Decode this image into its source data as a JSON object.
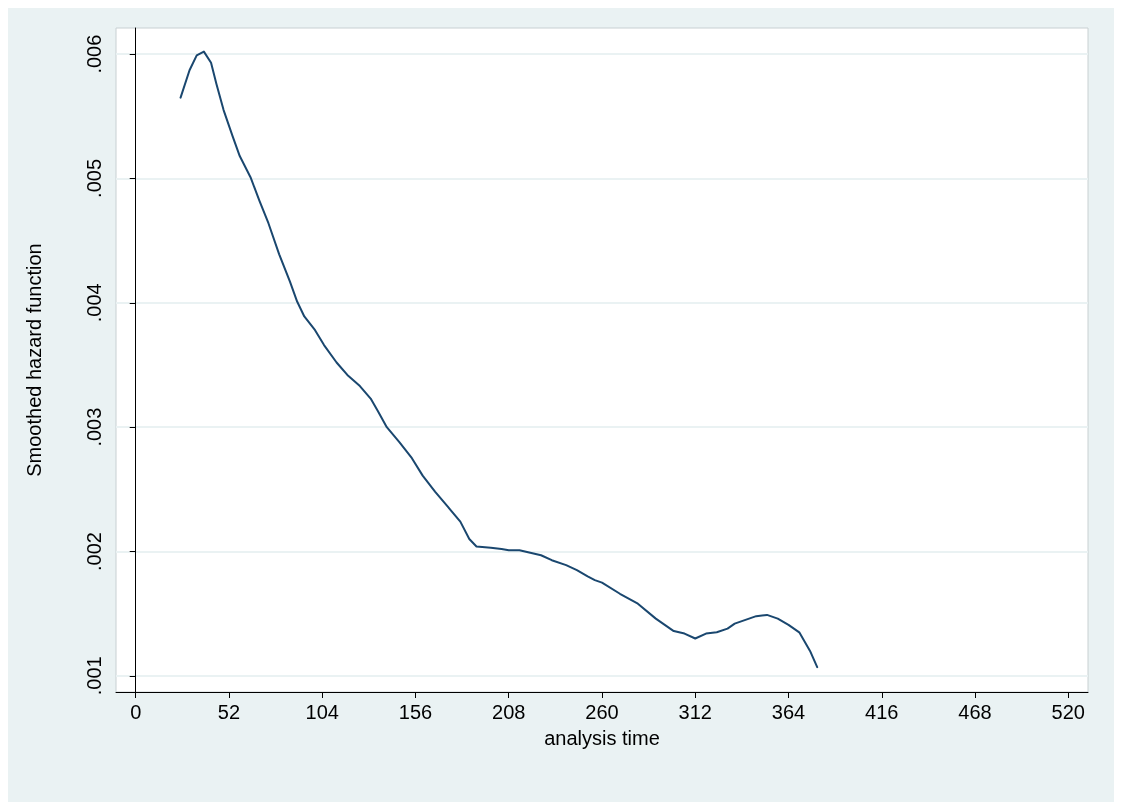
{
  "chart_data": {
    "type": "line",
    "xlabel": "analysis time",
    "ylabel": "Smoothed hazard function",
    "xlim": [
      -11,
      531
    ],
    "ylim": [
      0.00087,
      0.00621
    ],
    "xticks": [
      0,
      52,
      104,
      156,
      208,
      260,
      312,
      364,
      416,
      468,
      520
    ],
    "yticks": [
      {
        "value": 0.001,
        "label": ".001"
      },
      {
        "value": 0.002,
        "label": ".002"
      },
      {
        "value": 0.003,
        "label": ".003"
      },
      {
        "value": 0.004,
        "label": ".004"
      },
      {
        "value": 0.005,
        "label": ".005"
      },
      {
        "value": 0.006,
        "label": ".006"
      }
    ],
    "grid": "y",
    "marker": "none",
    "line_style": "solid",
    "series": [
      {
        "color": "#1a476f",
        "x": [
          25,
          30,
          34,
          38,
          42,
          45,
          49,
          54,
          58,
          64,
          69,
          74,
          80,
          86,
          90,
          94,
          100,
          105,
          112,
          118,
          125,
          131,
          135,
          140,
          147,
          154,
          160,
          167,
          174,
          181,
          186,
          190,
          198,
          204,
          208,
          214,
          220,
          226,
          232,
          240,
          246,
          252,
          256,
          260,
          270,
          280,
          290,
          296,
          300,
          306,
          312,
          318,
          324,
          330,
          334,
          340,
          346,
          352,
          358,
          364,
          370,
          376,
          380
        ],
        "values": [
          0.00565,
          0.00587,
          0.00599,
          0.00602,
          0.00593,
          0.00576,
          0.00555,
          0.00534,
          0.00518,
          0.00501,
          0.00482,
          0.00464,
          0.00439,
          0.00417,
          0.00401,
          0.00389,
          0.00378,
          0.00366,
          0.00352,
          0.00342,
          0.00333,
          0.00323,
          0.00313,
          0.003,
          0.00288,
          0.00275,
          0.00261,
          0.00248,
          0.00236,
          0.00224,
          0.0021,
          0.00204,
          0.00203,
          0.00202,
          0.00201,
          0.00201,
          0.00199,
          0.00197,
          0.00193,
          0.00189,
          0.00185,
          0.0018,
          0.00177,
          0.00175,
          0.00166,
          0.00158,
          0.00146,
          0.0014,
          0.00136,
          0.00134,
          0.0013,
          0.00134,
          0.00135,
          0.00138,
          0.00142,
          0.00145,
          0.00148,
          0.00149,
          0.00146,
          0.00141,
          0.00135,
          0.0012,
          0.00107
        ]
      }
    ]
  }
}
